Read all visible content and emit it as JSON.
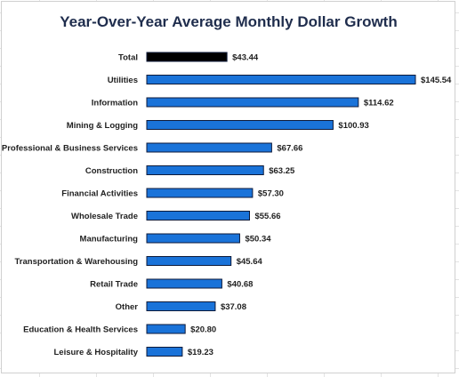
{
  "chart_data": {
    "type": "bar",
    "orientation": "horizontal",
    "title": "Year-Over-Year Average Monthly Dollar Growth",
    "categories": [
      "Total",
      "Utilities",
      "Information",
      "Mining & Logging",
      "Professional & Business Services",
      "Construction",
      "Financial Activities",
      "Wholesale Trade",
      "Manufacturing",
      "Transportation & Warehousing",
      "Retail Trade",
      "Other",
      "Education & Health Services",
      "Leisure & Hospitality"
    ],
    "values": [
      43.44,
      145.54,
      114.62,
      100.93,
      67.66,
      63.25,
      57.3,
      55.66,
      50.34,
      45.64,
      40.68,
      37.08,
      20.8,
      19.23
    ],
    "value_labels": [
      "$43.44",
      "$145.54",
      "$114.62",
      "$100.93",
      "$67.66",
      "$63.25",
      "$57.30",
      "$55.66",
      "$50.34",
      "$45.64",
      "$40.68",
      "$37.08",
      "$20.80",
      "$19.23"
    ],
    "xlim": [
      0,
      145.54
    ],
    "grid": false,
    "legend": "none",
    "colors": {
      "highlight_bar": "#000000",
      "bar": "#1a73d9",
      "bar_border": "#0d1a3a",
      "title": "#1f2d4d"
    },
    "highlight_index": 0
  }
}
